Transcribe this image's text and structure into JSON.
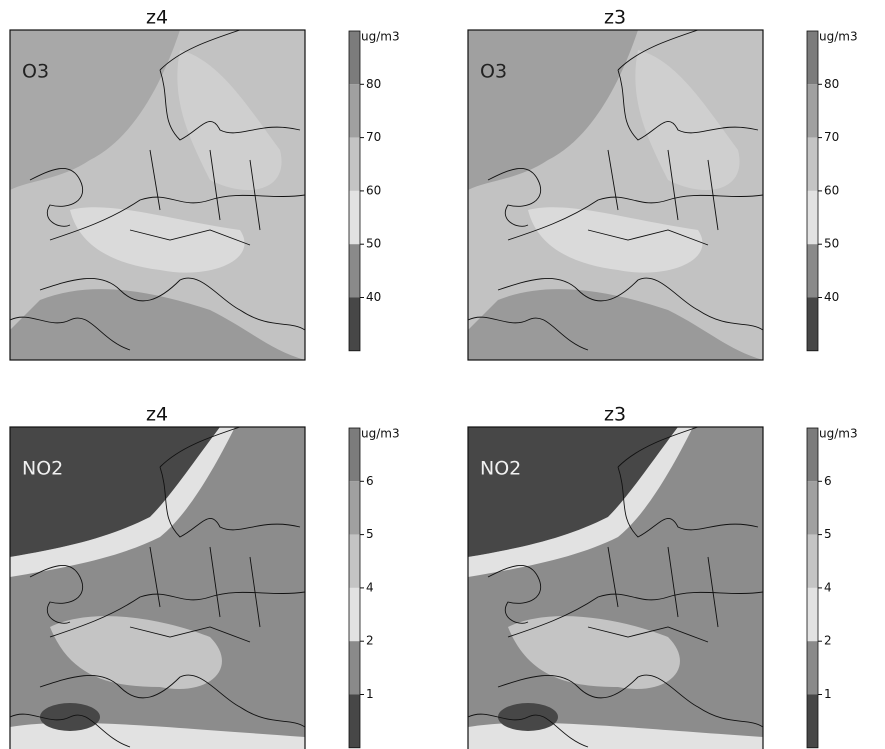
{
  "panels": [
    {
      "title": "z4",
      "species": "O3",
      "colorbar": {
        "unit": "ug/m3",
        "ticks": [
          80,
          70,
          60,
          50,
          40
        ],
        "colors": [
          "#7c7c7c",
          "#a0a0a0",
          "#c4c4c4",
          "#e2e2e2",
          "#8a8a8a",
          "#474747"
        ]
      }
    },
    {
      "title": "z3",
      "species": "O3",
      "colorbar": {
        "unit": "ug/m3",
        "ticks": [
          80,
          70,
          60,
          50,
          40
        ],
        "colors": [
          "#7c7c7c",
          "#a0a0a0",
          "#c4c4c4",
          "#e2e2e2",
          "#8a8a8a",
          "#474747"
        ]
      }
    },
    {
      "title": "z4",
      "species": "NO2",
      "colorbar": {
        "unit": "ug/m3",
        "ticks": [
          6,
          5,
          4,
          2,
          1
        ],
        "colors": [
          "#7c7c7c",
          "#a0a0a0",
          "#c4c4c4",
          "#e2e2e2",
          "#8a8a8a",
          "#474747"
        ]
      }
    },
    {
      "title": "z3",
      "species": "NO2",
      "colorbar": {
        "unit": "ug/m3",
        "ticks": [
          6,
          5,
          4,
          2,
          1
        ],
        "colors": [
          "#7c7c7c",
          "#a0a0a0",
          "#c4c4c4",
          "#e2e2e2",
          "#8a8a8a",
          "#474747"
        ]
      }
    }
  ]
}
